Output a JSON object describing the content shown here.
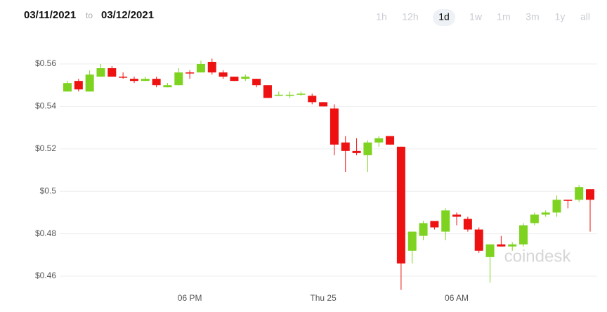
{
  "header": {
    "from": "03/11/2021",
    "to_label": "to",
    "to": "03/12/2021",
    "ranges": [
      "1h",
      "12h",
      "1d",
      "1w",
      "1m",
      "3m",
      "1y",
      "all"
    ],
    "selected": "1d"
  },
  "chart_data": {
    "type": "candlestick",
    "watermark": "coindesk",
    "categories": [
      null,
      null,
      null,
      null,
      null,
      null,
      null,
      null,
      null,
      null,
      null,
      "06 PM",
      null,
      null,
      null,
      null,
      null,
      null,
      null,
      null,
      null,
      null,
      null,
      "Thu 25",
      null,
      null,
      null,
      null,
      null,
      null,
      null,
      null,
      null,
      null,
      null,
      "06 AM",
      null,
      null,
      null,
      null,
      null,
      null,
      null,
      null,
      null,
      null,
      null,
      null
    ],
    "open": [
      0.547,
      0.552,
      0.547,
      0.554,
      0.558,
      0.554,
      0.553,
      0.552,
      0.553,
      0.549,
      0.55,
      0.556,
      0.556,
      0.561,
      0.556,
      0.554,
      0.553,
      0.553,
      0.55,
      0.545,
      0.545,
      0.5455,
      0.545,
      0.542,
      0.539,
      0.523,
      0.519,
      0.517,
      0.523,
      0.526,
      0.521,
      0.472,
      0.479,
      0.486,
      0.481,
      0.489,
      0.487,
      0.482,
      0.469,
      0.475,
      0.474,
      0.475,
      0.485,
      0.489,
      0.49,
      0.496,
      0.496,
      0.501
    ],
    "high": [
      0.552,
      0.553,
      0.557,
      0.56,
      0.559,
      0.556,
      0.554,
      0.554,
      0.554,
      0.551,
      0.558,
      0.557,
      0.5615,
      0.5625,
      0.557,
      0.554,
      0.555,
      0.553,
      0.55,
      0.547,
      0.547,
      0.547,
      0.546,
      0.542,
      0.541,
      0.526,
      0.525,
      0.524,
      0.526,
      0.526,
      0.521,
      0.481,
      0.486,
      0.486,
      0.492,
      0.49,
      0.488,
      0.483,
      0.475,
      0.479,
      0.476,
      0.485,
      0.49,
      0.491,
      0.498,
      0.496,
      0.503,
      0.501
    ],
    "low": [
      0.547,
      0.547,
      0.547,
      0.554,
      0.554,
      0.553,
      0.551,
      0.552,
      0.549,
      0.549,
      0.55,
      0.553,
      0.556,
      0.555,
      0.553,
      0.552,
      0.552,
      0.549,
      0.544,
      0.545,
      0.544,
      0.545,
      0.541,
      0.54,
      0.517,
      0.509,
      0.517,
      0.509,
      0.521,
      0.522,
      0.4535,
      0.466,
      0.477,
      0.482,
      0.477,
      0.484,
      0.481,
      0.471,
      0.457,
      0.474,
      0.472,
      0.474,
      0.484,
      0.488,
      0.488,
      0.492,
      0.495,
      0.481
    ],
    "close": [
      0.551,
      0.548,
      0.555,
      0.558,
      0.554,
      0.5535,
      0.552,
      0.553,
      0.55,
      0.55,
      0.556,
      0.5555,
      0.56,
      0.556,
      0.554,
      0.552,
      0.554,
      0.55,
      0.544,
      0.5455,
      0.5455,
      0.546,
      0.542,
      0.54,
      0.522,
      0.519,
      0.518,
      0.523,
      0.525,
      0.522,
      0.466,
      0.481,
      0.485,
      0.483,
      0.491,
      0.488,
      0.482,
      0.472,
      0.475,
      0.474,
      0.475,
      0.484,
      0.489,
      0.49,
      0.496,
      0.4955,
      0.502,
      0.496
    ],
    "up_color": "#7ed321",
    "down_color": "#ee1111",
    "ylim": [
      0.452,
      0.57
    ],
    "yticks": [
      {
        "value": 0.46,
        "label": "$0.46"
      },
      {
        "value": 0.48,
        "label": "$0.48"
      },
      {
        "value": 0.5,
        "label": "$0.5"
      },
      {
        "value": 0.52,
        "label": "$0.52"
      },
      {
        "value": 0.54,
        "label": "$0.54"
      },
      {
        "value": 0.56,
        "label": "$0.56"
      }
    ],
    "grid": true
  }
}
